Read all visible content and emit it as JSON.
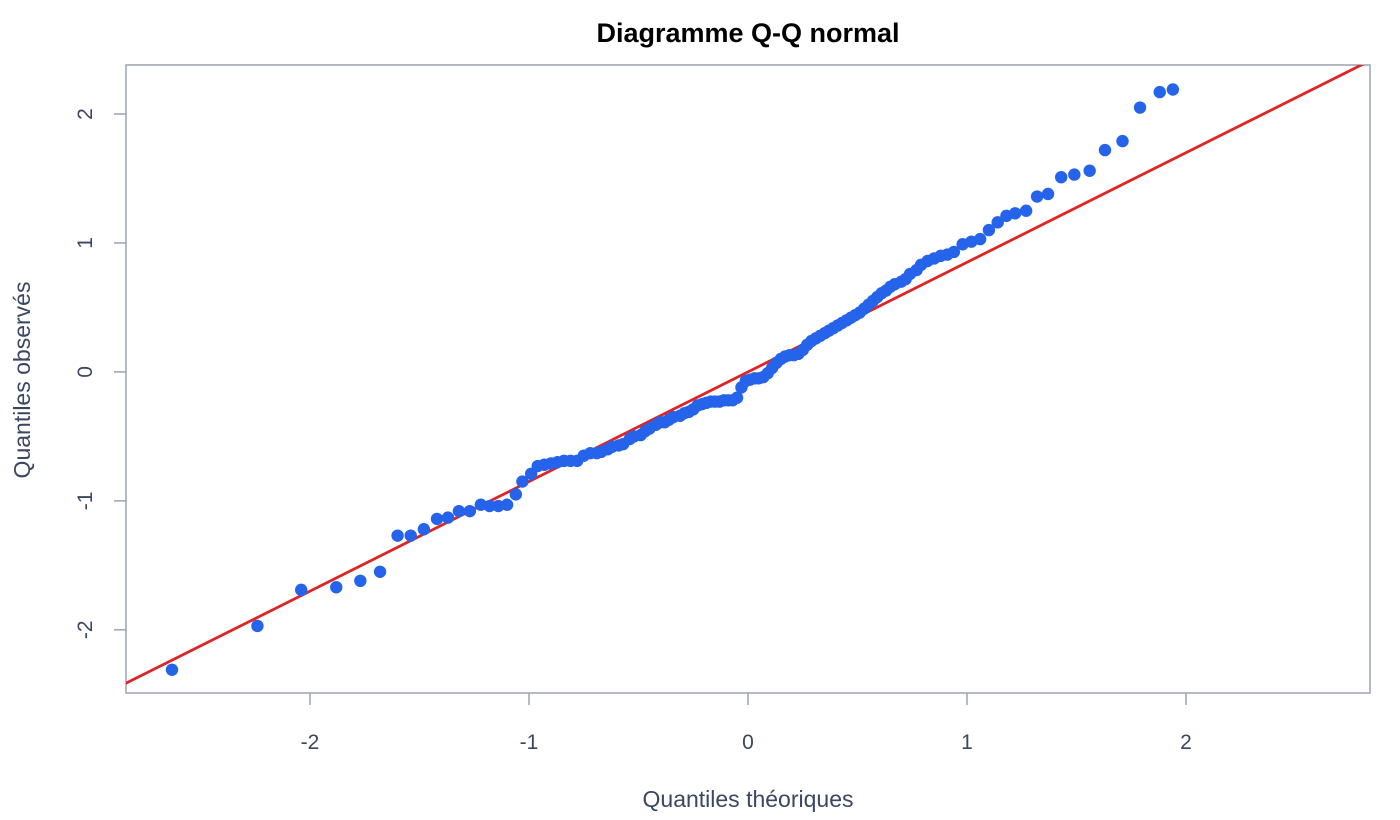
{
  "chart_data": {
    "type": "scatter",
    "title": "Diagramme Q-Q normal",
    "xlabel": "Quantiles théoriques",
    "ylabel": "Quantiles observés",
    "xlim": [
      -2.84,
      2.84
    ],
    "ylim": [
      -2.49,
      2.38
    ],
    "x_ticks": [
      -2,
      -1,
      0,
      1,
      2
    ],
    "y_ticks": [
      -2,
      -1,
      0,
      1,
      2
    ],
    "x_tick_labels": [
      "-2",
      "-1",
      "0",
      "1",
      "2"
    ],
    "y_tick_labels": [
      "-2",
      "-1",
      "0",
      "1",
      "2"
    ],
    "grid": false,
    "legend": "none",
    "colors": {
      "points": "#2563eb",
      "reference_line": "#dc2626",
      "axes": "#9aa4b2",
      "text": "#3b4660"
    },
    "reference_line": {
      "intercept": 0.0,
      "slope": 0.85
    },
    "points": [
      [
        -2.63,
        -2.31
      ],
      [
        -2.24,
        -1.97
      ],
      [
        -2.04,
        -1.69
      ],
      [
        -1.88,
        -1.67
      ],
      [
        -1.77,
        -1.62
      ],
      [
        -1.68,
        -1.55
      ],
      [
        -1.6,
        -1.27
      ],
      [
        -1.54,
        -1.27
      ],
      [
        -1.48,
        -1.22
      ],
      [
        -1.42,
        -1.14
      ],
      [
        -1.37,
        -1.13
      ],
      [
        -1.32,
        -1.08
      ],
      [
        -1.27,
        -1.08
      ],
      [
        -1.22,
        -1.03
      ],
      [
        -1.18,
        -1.04
      ],
      [
        -1.14,
        -1.04
      ],
      [
        -1.1,
        -1.03
      ],
      [
        -1.06,
        -0.95
      ],
      [
        -1.03,
        -0.85
      ],
      [
        -0.99,
        -0.79
      ],
      [
        -0.96,
        -0.73
      ],
      [
        -0.93,
        -0.72
      ],
      [
        -0.9,
        -0.71
      ],
      [
        -0.87,
        -0.7
      ],
      [
        -0.84,
        -0.69
      ],
      [
        -0.81,
        -0.69
      ],
      [
        -0.78,
        -0.69
      ],
      [
        -0.75,
        -0.65
      ],
      [
        -0.72,
        -0.63
      ],
      [
        -0.69,
        -0.63
      ],
      [
        -0.67,
        -0.62
      ],
      [
        -0.64,
        -0.6
      ],
      [
        -0.62,
        -0.58
      ],
      [
        -0.59,
        -0.57
      ],
      [
        -0.57,
        -0.56
      ],
      [
        -0.54,
        -0.52
      ],
      [
        -0.52,
        -0.5
      ],
      [
        -0.49,
        -0.49
      ],
      [
        -0.47,
        -0.46
      ],
      [
        -0.45,
        -0.44
      ],
      [
        -0.42,
        -0.41
      ],
      [
        -0.4,
        -0.39
      ],
      [
        -0.38,
        -0.39
      ],
      [
        -0.36,
        -0.37
      ],
      [
        -0.34,
        -0.35
      ],
      [
        -0.31,
        -0.34
      ],
      [
        -0.29,
        -0.32
      ],
      [
        -0.27,
        -0.31
      ],
      [
        -0.25,
        -0.29
      ],
      [
        -0.23,
        -0.26
      ],
      [
        -0.21,
        -0.25
      ],
      [
        -0.19,
        -0.24
      ],
      [
        -0.17,
        -0.23
      ],
      [
        -0.15,
        -0.23
      ],
      [
        -0.13,
        -0.23
      ],
      [
        -0.11,
        -0.22
      ],
      [
        -0.09,
        -0.22
      ],
      [
        -0.07,
        -0.22
      ],
      [
        -0.05,
        -0.2
      ],
      [
        -0.03,
        -0.12
      ],
      [
        -0.01,
        -0.07
      ],
      [
        0.01,
        -0.06
      ],
      [
        0.03,
        -0.05
      ],
      [
        0.05,
        -0.05
      ],
      [
        0.07,
        -0.04
      ],
      [
        0.09,
        -0.01
      ],
      [
        0.11,
        0.03
      ],
      [
        0.13,
        0.07
      ],
      [
        0.15,
        0.1
      ],
      [
        0.17,
        0.12
      ],
      [
        0.19,
        0.13
      ],
      [
        0.21,
        0.13
      ],
      [
        0.23,
        0.14
      ],
      [
        0.25,
        0.17
      ],
      [
        0.27,
        0.21
      ],
      [
        0.29,
        0.24
      ],
      [
        0.31,
        0.26
      ],
      [
        0.33,
        0.28
      ],
      [
        0.35,
        0.3
      ],
      [
        0.37,
        0.32
      ],
      [
        0.39,
        0.34
      ],
      [
        0.41,
        0.36
      ],
      [
        0.43,
        0.38
      ],
      [
        0.45,
        0.4
      ],
      [
        0.47,
        0.42
      ],
      [
        0.49,
        0.44
      ],
      [
        0.51,
        0.46
      ],
      [
        0.53,
        0.49
      ],
      [
        0.55,
        0.52
      ],
      [
        0.57,
        0.55
      ],
      [
        0.59,
        0.58
      ],
      [
        0.61,
        0.61
      ],
      [
        0.63,
        0.63
      ],
      [
        0.65,
        0.66
      ],
      [
        0.67,
        0.68
      ],
      [
        0.7,
        0.7
      ],
      [
        0.72,
        0.72
      ],
      [
        0.74,
        0.76
      ],
      [
        0.77,
        0.79
      ],
      [
        0.79,
        0.83
      ],
      [
        0.82,
        0.86
      ],
      [
        0.85,
        0.88
      ],
      [
        0.88,
        0.9
      ],
      [
        0.91,
        0.91
      ],
      [
        0.94,
        0.93
      ],
      [
        0.98,
        0.99
      ],
      [
        1.02,
        1.01
      ],
      [
        1.06,
        1.03
      ],
      [
        1.1,
        1.1
      ],
      [
        1.14,
        1.16
      ],
      [
        1.18,
        1.21
      ],
      [
        1.22,
        1.23
      ],
      [
        1.27,
        1.25
      ],
      [
        1.32,
        1.36
      ],
      [
        1.37,
        1.38
      ],
      [
        1.43,
        1.51
      ],
      [
        1.49,
        1.53
      ],
      [
        1.56,
        1.56
      ],
      [
        1.63,
        1.72
      ],
      [
        1.71,
        1.79
      ],
      [
        1.79,
        2.05
      ],
      [
        1.88,
        2.17
      ],
      [
        1.94,
        2.19
      ]
    ]
  }
}
